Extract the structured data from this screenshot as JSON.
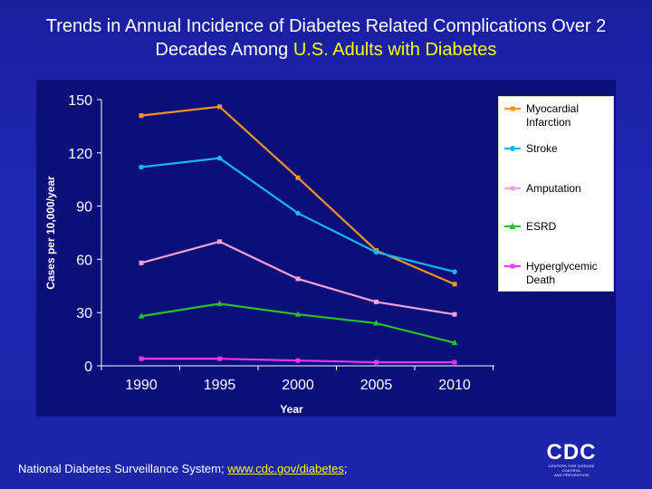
{
  "title": {
    "line1": "Trends in  Annual Incidence of Diabetes Related Complications Over 2",
    "line2_prefix": "Decades Among ",
    "line2_highlight": "U.S. Adults with Diabetes"
  },
  "colors": {
    "background": "#1c24a8",
    "plot_background": "#0a0f7a",
    "highlight": "#ffff00"
  },
  "chart_data": {
    "type": "line",
    "title": "Trends in Annual Incidence of Diabetes Related Complications Over 2 Decades Among U.S. Adults with Diabetes",
    "xlabel": "Year",
    "ylabel": "Cases per 10,000/year",
    "x": [
      "1990",
      "1995",
      "2000",
      "2005",
      "2010"
    ],
    "ylim": [
      0,
      150
    ],
    "yticks": [
      "0",
      "30",
      "60",
      "90",
      "120",
      "150"
    ],
    "grid": false,
    "legend_position": "right",
    "series": [
      {
        "name": "Myocardial Infarction",
        "color": "#f7941d",
        "marker": "square",
        "values": [
          141,
          146,
          106,
          65,
          46
        ]
      },
      {
        "name": "Stroke",
        "color": "#16b6f0",
        "marker": "circle",
        "values": [
          112,
          117,
          86,
          64,
          53
        ]
      },
      {
        "name": "Amputation",
        "color": "#f9a0d4",
        "marker": "square",
        "values": [
          58,
          70,
          49,
          36,
          29
        ]
      },
      {
        "name": "ESRD",
        "color": "#27c12b",
        "marker": "triangle",
        "values": [
          28,
          35,
          29,
          24,
          13
        ]
      },
      {
        "name": "Hyperglycemic Death",
        "color": "#e835e8",
        "marker": "square",
        "values": [
          4,
          4,
          3,
          2,
          2
        ]
      }
    ]
  },
  "legend": {
    "items": [
      {
        "label": "Myocardial Infarction"
      },
      {
        "label": "Stroke"
      },
      {
        "label": "Amputation"
      },
      {
        "label": "ESRD"
      },
      {
        "label": "Hyperglycemic Death"
      }
    ]
  },
  "footer": {
    "source": "National Diabetes Surveillance System;  ",
    "link": "www.cdc.gov/diabetes",
    "suffix": ";"
  },
  "logo": {
    "main": "CDC",
    "sub_line1": "CENTERS FOR DISEASE CONTROL",
    "sub_line2": "AND PREVENTION"
  }
}
